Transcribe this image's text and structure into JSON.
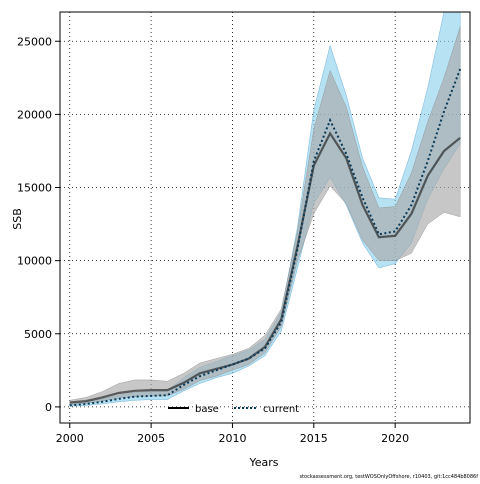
{
  "colors": {
    "base_line": "#000000",
    "base_band": "#a9a9a9",
    "current_line": "#0a3a5a",
    "current_band": "#87ceeb",
    "grid": "#000000"
  },
  "footer": {
    "text": "stockassessment.org, testWOSOnlyOffshore, r10403, git:1cc484b8086f"
  },
  "chart_data": {
    "type": "line",
    "xlabel": "Years",
    "ylabel": "SSB",
    "xlim": [
      1999.4,
      2024.6
    ],
    "ylim": [
      -1100,
      27000
    ],
    "x_ticks": [
      2000,
      2005,
      2010,
      2015,
      2020
    ],
    "x_tick_labels": [
      "2000",
      "2005",
      "2010",
      "2015",
      "2020"
    ],
    "y_ticks": [
      0,
      5000,
      10000,
      15000,
      20000,
      25000
    ],
    "y_tick_labels": [
      "0",
      "5000",
      "10000",
      "15000",
      "20000",
      "25000"
    ],
    "grid": true,
    "legend": {
      "position": "bottom-center",
      "entries": [
        "base",
        "current"
      ]
    },
    "x": [
      2000,
      2001,
      2002,
      2003,
      2004,
      2005,
      2006,
      2007,
      2008,
      2009,
      2010,
      2011,
      2012,
      2013,
      2014,
      2015,
      2016,
      2017,
      2018,
      2019,
      2020,
      2021,
      2022,
      2023,
      2024
    ],
    "series": [
      {
        "name": "base",
        "values": [
          300,
          400,
          650,
          950,
          1100,
          1150,
          1150,
          1650,
          2300,
          2600,
          2900,
          3300,
          4100,
          6000,
          11000,
          16500,
          18700,
          17000,
          13800,
          11600,
          11700,
          13200,
          15800,
          17500,
          18400
        ],
        "lower": [
          150,
          250,
          400,
          600,
          700,
          750,
          750,
          1200,
          1800,
          2100,
          2500,
          2900,
          3700,
          5500,
          10000,
          13200,
          15100,
          13900,
          11400,
          10000,
          10000,
          10500,
          12500,
          13300,
          13000
        ],
        "upper": [
          450,
          650,
          1050,
          1600,
          1850,
          1850,
          1750,
          2300,
          3000,
          3300,
          3600,
          4000,
          4900,
          6700,
          12000,
          19000,
          23000,
          20500,
          16400,
          13600,
          13700,
          16000,
          19500,
          22500,
          26000
        ]
      },
      {
        "name": "current",
        "values": [
          100,
          200,
          350,
          550,
          700,
          750,
          800,
          1500,
          2100,
          2500,
          2900,
          3300,
          4000,
          5800,
          10800,
          16800,
          19600,
          17300,
          14300,
          11800,
          12000,
          13800,
          16800,
          20200,
          23100
        ],
        "lower": [
          50,
          100,
          200,
          350,
          450,
          500,
          500,
          1100,
          1600,
          2000,
          2300,
          2800,
          3500,
          5200,
          9500,
          13900,
          15700,
          13800,
          11200,
          9500,
          9800,
          11200,
          14200,
          16300,
          18000
        ],
        "upper": [
          200,
          350,
          550,
          800,
          1000,
          1050,
          1100,
          2000,
          2700,
          3100,
          3500,
          3900,
          4600,
          6500,
          12300,
          20300,
          24700,
          21300,
          17000,
          14300,
          14200,
          17500,
          21800,
          27000,
          27000
        ]
      }
    ]
  }
}
